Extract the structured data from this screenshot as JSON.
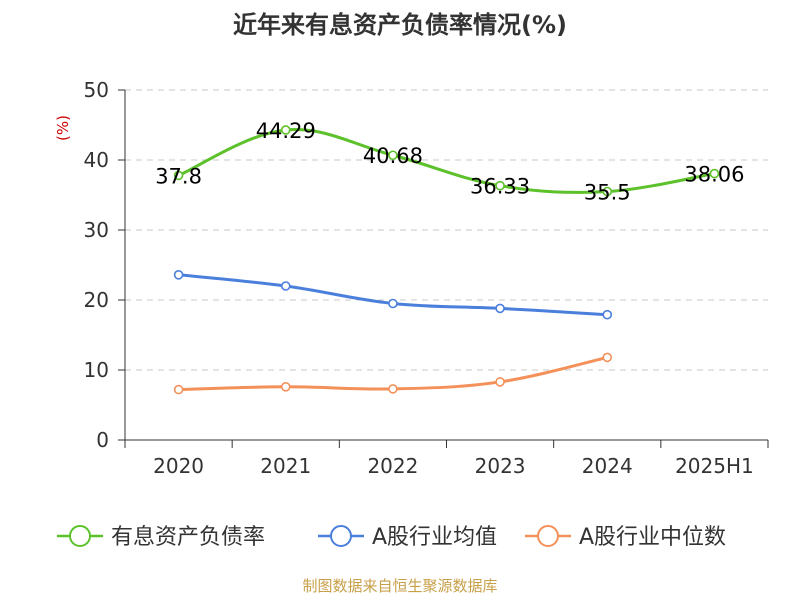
{
  "chart_data": {
    "type": "line",
    "title": "近年来有息资产负债率情况(%)",
    "ylabel": "(%)",
    "xlabel": "",
    "ylim": [
      0,
      50
    ],
    "yticks": [
      0,
      10,
      20,
      30,
      40,
      50
    ],
    "categories": [
      "2020",
      "2021",
      "2022",
      "2023",
      "2024",
      "2025H1"
    ],
    "grid": true,
    "legend_position": "bottom",
    "series": [
      {
        "name": "有息资产负债率",
        "color": "#5cc12a",
        "values": [
          37.8,
          44.29,
          40.68,
          36.33,
          35.5,
          38.06
        ],
        "labels": [
          "37.8",
          "44.29",
          "40.68",
          "36.33",
          "35.5",
          "38.06"
        ]
      },
      {
        "name": "A股行业均值",
        "color": "#4a7fdb",
        "values": [
          23.6,
          22.0,
          19.5,
          18.8,
          17.9,
          null
        ]
      },
      {
        "name": "A股行业中位数",
        "color": "#f4915a",
        "values": [
          7.2,
          7.6,
          7.3,
          8.3,
          11.8,
          null
        ]
      }
    ]
  },
  "footer": {
    "source": "制图数据来自恒生聚源数据库",
    "source_color": "#c8a04a"
  }
}
